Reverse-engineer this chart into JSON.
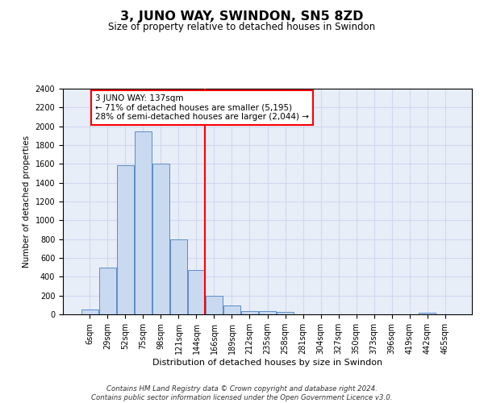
{
  "title": "3, JUNO WAY, SWINDON, SN5 8ZD",
  "subtitle": "Size of property relative to detached houses in Swindon",
  "xlabel": "Distribution of detached houses by size in Swindon",
  "ylabel": "Number of detached properties",
  "bin_labels": [
    "6sqm",
    "29sqm",
    "52sqm",
    "75sqm",
    "98sqm",
    "121sqm",
    "144sqm",
    "166sqm",
    "189sqm",
    "212sqm",
    "235sqm",
    "258sqm",
    "281sqm",
    "304sqm",
    "327sqm",
    "350sqm",
    "373sqm",
    "396sqm",
    "419sqm",
    "442sqm",
    "465sqm"
  ],
  "bar_values": [
    55,
    500,
    1590,
    1950,
    1600,
    800,
    475,
    195,
    95,
    35,
    35,
    25,
    0,
    0,
    0,
    0,
    0,
    0,
    0,
    20,
    0
  ],
  "bar_color": "#c9d9f0",
  "bar_edge_color": "#5b8dc8",
  "vline_position": 6.5,
  "vline_color": "red",
  "annotation_text": "3 JUNO WAY: 137sqm\n← 71% of detached houses are smaller (5,195)\n28% of semi-detached houses are larger (2,044) →",
  "annotation_box_color": "white",
  "annotation_box_edge": "red",
  "ylim": [
    0,
    2400
  ],
  "yticks": [
    0,
    200,
    400,
    600,
    800,
    1000,
    1200,
    1400,
    1600,
    1800,
    2000,
    2200,
    2400
  ],
  "grid_color": "#d0d8f0",
  "background_color": "#e8eef8",
  "footer": "Contains HM Land Registry data © Crown copyright and database right 2024.\nContains public sector information licensed under the Open Government Licence v3.0."
}
